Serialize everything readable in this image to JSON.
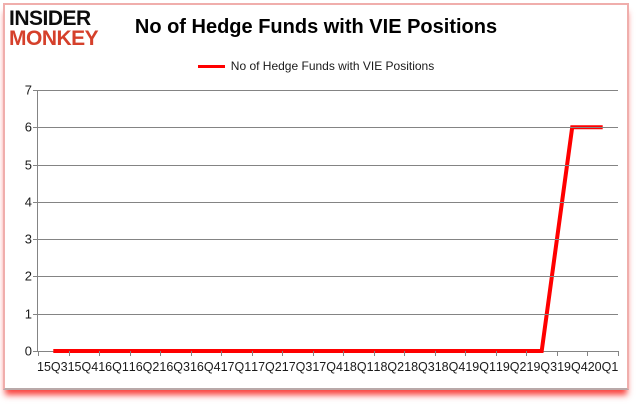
{
  "brand": {
    "line1": "INSIDER",
    "line2": "MONKEY",
    "line1_color": "#0d0d0d",
    "line2_color": "#d5402b"
  },
  "colors": {
    "series_red": "#ff0000",
    "gridline_gray": "#848484",
    "frame_border_pink": "#f0aeac",
    "bottom_glow_red": "#f8241e"
  },
  "chart_data": {
    "type": "line",
    "title": "No of Hedge Funds with VIE Positions",
    "legend_label": "No of Hedge Funds with VIE Positions",
    "legend_position": "top",
    "grid": true,
    "xlabel": "",
    "ylabel": "",
    "ylim": [
      0,
      7
    ],
    "ytick_step": 1,
    "yticks": [
      0,
      1,
      2,
      3,
      4,
      5,
      6,
      7
    ],
    "categories": [
      "15Q3",
      "15Q4",
      "16Q1",
      "16Q2",
      "16Q3",
      "16Q4",
      "17Q1",
      "17Q2",
      "17Q3",
      "17Q4",
      "18Q1",
      "18Q2",
      "18Q3",
      "18Q4",
      "19Q1",
      "19Q2",
      "19Q3",
      "19Q4",
      "20Q1"
    ],
    "series": [
      {
        "name": "No of Hedge Funds with VIE Positions",
        "color": "#ff0000",
        "values": [
          0,
          0,
          0,
          0,
          0,
          0,
          0,
          0,
          0,
          0,
          0,
          0,
          0,
          0,
          0,
          0,
          0,
          6,
          6
        ]
      }
    ]
  }
}
